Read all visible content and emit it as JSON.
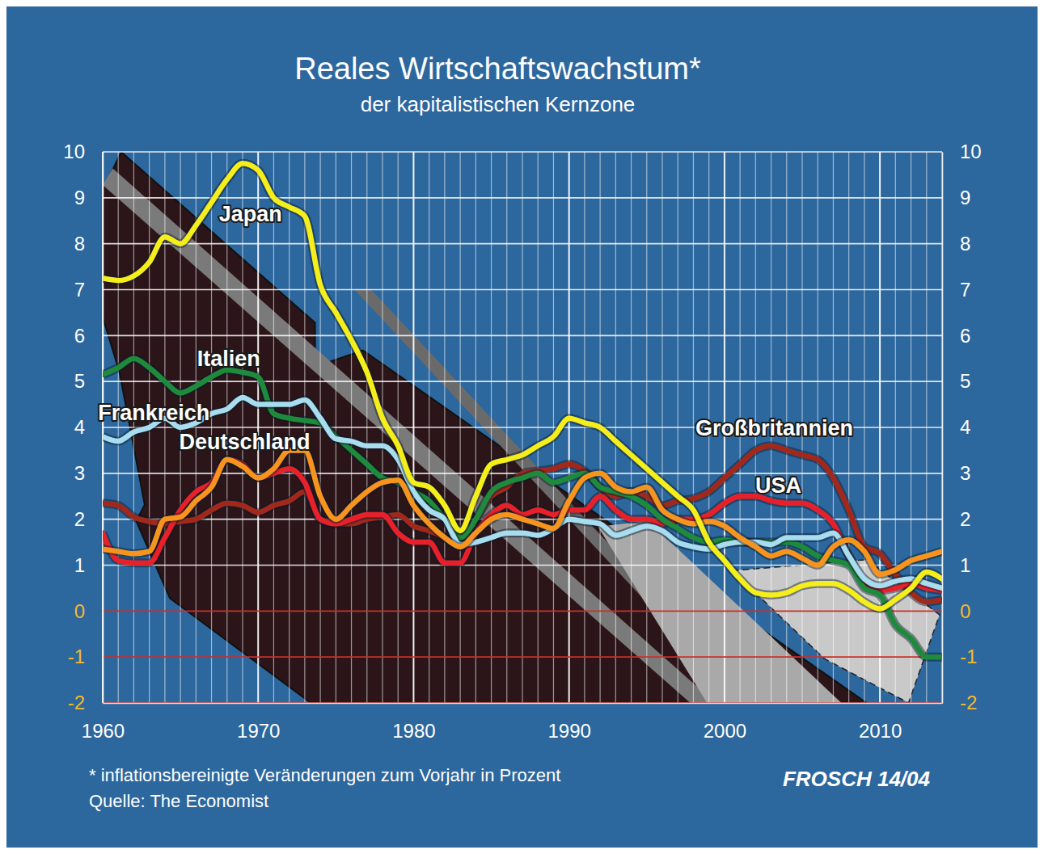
{
  "chart_data": {
    "type": "line",
    "title": "Reales Wirtschaftswachstum*",
    "subtitle": "der kapitalistischen Kernzone",
    "annotations": [
      "* inflationsbereinigte Veränderungen zum Vorjahr in Prozent",
      "Quelle: The Economist",
      "FROSCH 14/04"
    ],
    "x": [
      1960,
      1961,
      1962,
      1963,
      1964,
      1965,
      1966,
      1967,
      1968,
      1969,
      1970,
      1971,
      1972,
      1973,
      1974,
      1975,
      1976,
      1977,
      1978,
      1979,
      1980,
      1981,
      1982,
      1983,
      1984,
      1985,
      1986,
      1987,
      1988,
      1989,
      1990,
      1991,
      1992,
      1993,
      1994,
      1995,
      1996,
      1997,
      1998,
      1999,
      2000,
      2001,
      2002,
      2003,
      2004,
      2005,
      2006,
      2007,
      2008,
      2009,
      2010,
      2011,
      2012,
      2013,
      2014
    ],
    "xlim": [
      1960,
      2014
    ],
    "xticks": [
      1960,
      1970,
      1980,
      1990,
      2000,
      2010
    ],
    "ylim": [
      -2,
      10
    ],
    "yticks": [
      10,
      9,
      8,
      7,
      6,
      5,
      4,
      3,
      2,
      1,
      0,
      -1,
      -2
    ],
    "grid": true,
    "series": [
      {
        "name": "Großbritannien",
        "color": "#a3281c",
        "values": [
          2.35,
          2.3,
          2.05,
          1.95,
          1.9,
          1.95,
          2.0,
          2.2,
          2.35,
          2.3,
          2.15,
          2.3,
          2.4,
          2.6,
          2.0,
          1.9,
          1.9,
          2.0,
          2.05,
          2.1,
          1.85,
          1.75,
          1.6,
          1.4,
          2.0,
          2.5,
          2.7,
          3.0,
          3.05,
          3.1,
          3.2,
          3.05,
          2.7,
          2.5,
          2.6,
          2.5,
          2.3,
          2.4,
          2.45,
          2.6,
          2.9,
          3.2,
          3.5,
          3.6,
          3.5,
          3.4,
          3.3,
          2.9,
          2.2,
          1.4,
          1.25,
          0.8,
          0.4,
          0.2,
          0.25
        ]
      },
      {
        "name": "USA",
        "color": "#e8202a",
        "values": [
          1.7,
          1.1,
          1.05,
          1.05,
          1.6,
          2.2,
          2.6,
          2.8,
          3.3,
          3.2,
          2.9,
          3.0,
          3.1,
          2.8,
          2.0,
          1.9,
          2.0,
          2.1,
          2.1,
          1.7,
          1.5,
          1.5,
          1.05,
          1.05,
          1.7,
          2.1,
          2.3,
          2.1,
          2.2,
          2.1,
          2.2,
          2.2,
          2.5,
          2.2,
          2.0,
          2.0,
          1.9,
          2.0,
          2.0,
          2.1,
          2.35,
          2.5,
          2.5,
          2.4,
          2.35,
          2.35,
          2.2,
          1.9,
          1.2,
          0.6,
          0.45,
          0.5,
          0.6,
          0.5,
          0.45
        ]
      },
      {
        "name": "Italien",
        "color": "#1e8a3c",
        "values": [
          5.15,
          5.3,
          5.5,
          5.3,
          5.0,
          4.75,
          4.9,
          5.1,
          5.25,
          5.2,
          5.1,
          4.3,
          4.2,
          4.15,
          4.1,
          3.8,
          3.5,
          3.2,
          2.9,
          2.8,
          2.6,
          2.4,
          2.0,
          1.6,
          2.0,
          2.6,
          2.8,
          2.9,
          3.0,
          2.8,
          2.9,
          3.0,
          2.7,
          2.6,
          2.5,
          2.3,
          2.0,
          1.8,
          1.6,
          1.5,
          1.55,
          1.5,
          1.5,
          1.5,
          1.5,
          1.4,
          1.2,
          1.1,
          1.0,
          0.5,
          0.35,
          -0.3,
          -0.6,
          -1.0,
          -1.0
        ]
      },
      {
        "name": "Frankreich",
        "color": "#a8dcef",
        "values": [
          3.8,
          3.7,
          3.9,
          4.0,
          4.2,
          4.0,
          4.1,
          4.3,
          4.4,
          4.65,
          4.5,
          4.5,
          4.5,
          4.6,
          4.2,
          3.75,
          3.7,
          3.6,
          3.6,
          3.3,
          2.6,
          2.2,
          2.0,
          1.45,
          1.5,
          1.6,
          1.7,
          1.7,
          1.65,
          1.8,
          2.0,
          1.95,
          1.9,
          1.65,
          1.75,
          1.85,
          1.75,
          1.5,
          1.4,
          1.35,
          1.45,
          1.5,
          1.5,
          1.45,
          1.6,
          1.6,
          1.6,
          1.7,
          1.2,
          0.7,
          0.55,
          0.65,
          0.7,
          0.6,
          0.5
        ]
      },
      {
        "name": "Deutschland",
        "color": "#f7941d",
        "values": [
          1.35,
          1.3,
          1.25,
          1.3,
          2.0,
          2.05,
          2.4,
          2.7,
          3.3,
          3.15,
          2.9,
          3.1,
          3.5,
          3.5,
          2.5,
          2.0,
          2.3,
          2.6,
          2.8,
          2.85,
          2.3,
          1.9,
          1.6,
          1.4,
          1.7,
          2.0,
          2.1,
          2.0,
          1.9,
          1.8,
          2.4,
          2.9,
          3.0,
          2.7,
          2.6,
          2.7,
          2.2,
          2.0,
          1.9,
          1.95,
          1.85,
          1.6,
          1.4,
          1.2,
          1.3,
          1.15,
          1.0,
          1.4,
          1.55,
          1.3,
          0.8,
          0.9,
          1.1,
          1.2,
          1.3
        ]
      },
      {
        "name": "Japan",
        "color": "#f5ee1a",
        "values": [
          7.25,
          7.2,
          7.3,
          7.6,
          8.15,
          8.0,
          8.4,
          8.9,
          9.4,
          9.75,
          9.6,
          9.0,
          8.8,
          8.6,
          7.1,
          6.5,
          5.9,
          5.2,
          4.2,
          3.6,
          2.8,
          2.7,
          2.3,
          1.75,
          2.5,
          3.2,
          3.3,
          3.4,
          3.6,
          3.8,
          4.2,
          4.1,
          4.0,
          3.7,
          3.4,
          3.1,
          2.8,
          2.5,
          2.2,
          1.5,
          1.1,
          0.7,
          0.4,
          0.35,
          0.4,
          0.55,
          0.6,
          0.6,
          0.45,
          0.2,
          0.05,
          0.25,
          0.5,
          0.85,
          0.7
        ]
      }
    ]
  }
}
